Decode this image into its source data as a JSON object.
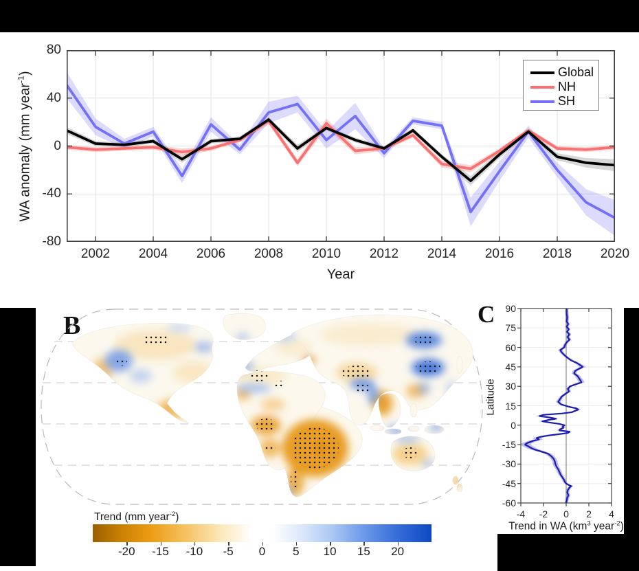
{
  "figure": {
    "background": "#ffffff",
    "mask_color": "#000000"
  },
  "panel_a": {
    "xlabel": "Year",
    "ylabel_main": "WA anomaly (mm year",
    "ylabel_sup": "-1",
    "ylabel_end": ")",
    "legend": [
      {
        "label": "Global",
        "color": "#000000"
      },
      {
        "label": "NH",
        "color": "#f87070"
      },
      {
        "label": "SH",
        "color": "#7470f8"
      }
    ]
  },
  "panel_b": {
    "label": "B",
    "colorbar_label_main": "Trend (mm year",
    "colorbar_label_sup": "-2",
    "colorbar_label_end": ")"
  },
  "panel_c": {
    "label": "C",
    "ylabel": "Latitude",
    "xlabel_p1": "Trend in WA (km",
    "xlabel_sup1": "3",
    "xlabel_p2": " year",
    "xlabel_sup2": "-2",
    "xlabel_end": ")"
  },
  "chart_data": [
    {
      "id": "panel-a-anomaly-timeseries",
      "type": "line",
      "xlabel": "Year",
      "ylabel": "WA anomaly (mm year-1)",
      "xlim": [
        2001,
        2020
      ],
      "ylim": [
        -80,
        80
      ],
      "x_ticks": [
        2002,
        2004,
        2006,
        2008,
        2010,
        2012,
        2014,
        2016,
        2018,
        2020
      ],
      "y_ticks": [
        80,
        40,
        0,
        -40,
        -80
      ],
      "grid": true,
      "legend_position": "upper right",
      "years": [
        2001,
        2002,
        2003,
        2004,
        2005,
        2006,
        2007,
        2008,
        2009,
        2010,
        2011,
        2012,
        2013,
        2014,
        2015,
        2016,
        2017,
        2018,
        2019,
        2020
      ],
      "series": [
        {
          "name": "Global",
          "color": "#000000",
          "band_color": "rgba(110,110,110,0.28)",
          "values": [
            13,
            2,
            1,
            4,
            -11,
            4,
            6,
            22,
            -2,
            15,
            5,
            -2,
            13,
            -9,
            -29,
            -7,
            12,
            -9,
            -14,
            -16
          ],
          "band_halfwidth": [
            3,
            2,
            2,
            2,
            3,
            2,
            2,
            2,
            3,
            2,
            2,
            2,
            2,
            2,
            4,
            3,
            2,
            3,
            4,
            5
          ]
        },
        {
          "name": "NH",
          "color": "#f87070",
          "band_color": "rgba(248,112,112,0.28)",
          "values": [
            -1,
            -3,
            -2,
            -1,
            -5,
            -2,
            5,
            21,
            -14,
            19,
            -4,
            -2,
            9,
            -15,
            -19,
            -4,
            13,
            -2,
            -3,
            -1
          ],
          "band_halfwidth": [
            2,
            2,
            2,
            2,
            3,
            2,
            2,
            3,
            3,
            4,
            3,
            2,
            2,
            3,
            3,
            2,
            2,
            2,
            2,
            2
          ]
        },
        {
          "name": "SH",
          "color": "#7470f8",
          "band_color": "rgba(116,112,248,0.25)",
          "values": [
            51,
            16,
            2,
            12,
            -25,
            18,
            -3,
            28,
            35,
            5,
            25,
            -6,
            21,
            17,
            -55,
            -21,
            12,
            -20,
            -47,
            -60
          ],
          "band_halfwidth": [
            11,
            7,
            4,
            4,
            6,
            6,
            4,
            9,
            7,
            7,
            11,
            4,
            3,
            3,
            12,
            8,
            5,
            6,
            11,
            15
          ]
        }
      ]
    },
    {
      "id": "panel-c-latitude-profile",
      "type": "line",
      "orientation": "value-on-x-latitude-on-y",
      "xlabel": "Trend in WA (km3 year-2)",
      "ylabel": "Latitude",
      "xlim": [
        -4,
        4
      ],
      "ylim": [
        -60,
        90
      ],
      "x_ticks": [
        -4,
        -2,
        0,
        2,
        4
      ],
      "y_ticks": [
        90,
        75,
        60,
        45,
        30,
        15,
        0,
        -15,
        -30,
        -45,
        -60
      ],
      "line_color": "#1c1cae",
      "band_color": "rgba(100,96,200,0.42)",
      "zero_line_color": "#8c8c8c",
      "points": [
        [
          90,
          0.05
        ],
        [
          86,
          0.05
        ],
        [
          83,
          0.1
        ],
        [
          80,
          0.05
        ],
        [
          78,
          0.18
        ],
        [
          76,
          0.05
        ],
        [
          74,
          0.22
        ],
        [
          72,
          0.08
        ],
        [
          70,
          0.28
        ],
        [
          68,
          0.12
        ],
        [
          66,
          0.3
        ],
        [
          64,
          0.05
        ],
        [
          62,
          -0.1
        ],
        [
          60,
          -0.18
        ],
        [
          58,
          -0.52
        ],
        [
          56,
          -0.38
        ],
        [
          54,
          -0.15
        ],
        [
          52,
          0.12
        ],
        [
          50,
          0.45
        ],
        [
          48,
          0.95
        ],
        [
          46,
          1.3
        ],
        [
          45,
          1.45
        ],
        [
          44,
          1.25
        ],
        [
          42,
          0.8
        ],
        [
          40,
          0.7
        ],
        [
          38,
          1.0
        ],
        [
          36,
          1.15
        ],
        [
          34,
          1.3
        ],
        [
          33,
          1.35
        ],
        [
          32,
          1.0
        ],
        [
          30,
          0.35
        ],
        [
          28,
          0.15
        ],
        [
          26,
          0.25
        ],
        [
          24,
          -0.1
        ],
        [
          22,
          -0.4
        ],
        [
          20,
          -0.55
        ],
        [
          18,
          -0.7
        ],
        [
          16,
          -0.45
        ],
        [
          14,
          0.35
        ],
        [
          13,
          0.9
        ],
        [
          12,
          1.05
        ],
        [
          10,
          0.5
        ],
        [
          9,
          -0.4
        ],
        [
          8,
          -2.0
        ],
        [
          7,
          -2.35
        ],
        [
          6,
          -1.5
        ],
        [
          5,
          -0.9
        ],
        [
          4,
          -1.6
        ],
        [
          3,
          -2.1
        ],
        [
          2,
          -1.4
        ],
        [
          1,
          -0.6
        ],
        [
          0,
          -0.15
        ],
        [
          -1,
          -0.3
        ],
        [
          -2,
          -0.25
        ],
        [
          -3,
          -0.5
        ],
        [
          -4,
          -0.6
        ],
        [
          -5,
          0.3
        ],
        [
          -6,
          0.15
        ],
        [
          -7,
          -0.7
        ],
        [
          -8,
          -1.6
        ],
        [
          -9,
          -2.3
        ],
        [
          -10,
          -2.6
        ],
        [
          -11,
          -2.4
        ],
        [
          -12,
          -2.9
        ],
        [
          -13,
          -3.2
        ],
        [
          -14,
          -3.5
        ],
        [
          -15,
          -3.62
        ],
        [
          -16,
          -3.4
        ],
        [
          -17,
          -3.2
        ],
        [
          -18,
          -3.0
        ],
        [
          -19,
          -2.7
        ],
        [
          -20,
          -2.3
        ],
        [
          -22,
          -1.6
        ],
        [
          -24,
          -1.3
        ],
        [
          -26,
          -1.1
        ],
        [
          -28,
          -1.0
        ],
        [
          -30,
          -0.95
        ],
        [
          -32,
          -0.85
        ],
        [
          -34,
          -0.7
        ],
        [
          -36,
          -0.6
        ],
        [
          -38,
          -0.5
        ],
        [
          -40,
          -0.35
        ],
        [
          -42,
          -0.2
        ],
        [
          -44,
          -0.1
        ],
        [
          -45,
          0.0
        ],
        [
          -46,
          0.2
        ],
        [
          -47,
          0.45
        ],
        [
          -48,
          0.3
        ],
        [
          -50,
          0.15
        ],
        [
          -52,
          0.1
        ],
        [
          -54,
          0.2
        ],
        [
          -56,
          0.1
        ],
        [
          -58,
          0.05
        ],
        [
          -60,
          0.0
        ]
      ]
    },
    {
      "id": "panel-b-trend-colorbar",
      "type": "colorbar",
      "label": "Trend (mm year-2)",
      "range": [
        -25,
        25
      ],
      "ticks": [
        -20,
        -15,
        -10,
        -5,
        0,
        5,
        10,
        15,
        20
      ],
      "gradient_stops": [
        [
          0,
          "#996100"
        ],
        [
          8,
          "#c87f04"
        ],
        [
          17,
          "#ec9c12"
        ],
        [
          28,
          "#f6c466"
        ],
        [
          38,
          "#fbe9bd"
        ],
        [
          47,
          "#ffffff"
        ],
        [
          53,
          "#ffffff"
        ],
        [
          62,
          "#dbe7fa"
        ],
        [
          71,
          "#a9c6f4"
        ],
        [
          80,
          "#6d99e9"
        ],
        [
          89,
          "#3a70da"
        ],
        [
          100,
          "#0d49c4"
        ]
      ]
    }
  ]
}
